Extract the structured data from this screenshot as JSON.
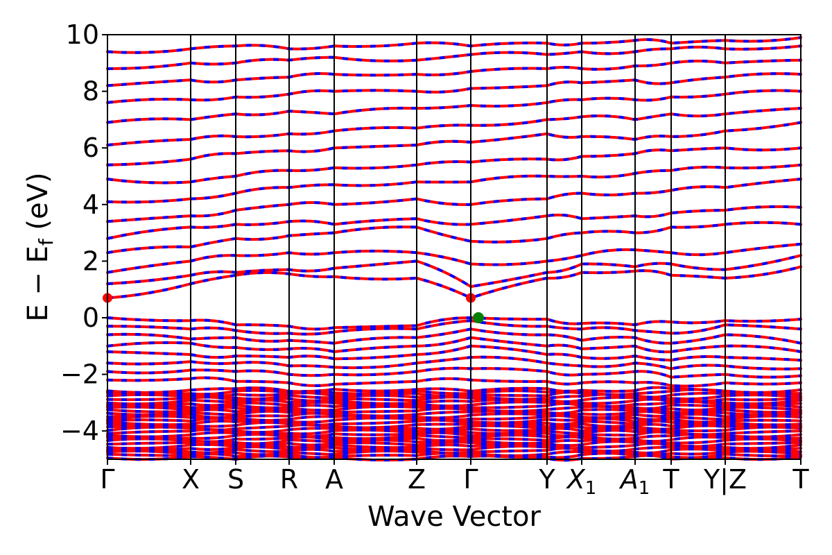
{
  "chart_data": {
    "type": "line",
    "title": "",
    "xlabel": "Wave Vector",
    "ylabel_main": "E − E",
    "ylabel_sub": "f",
    "ylabel_unit": " (eV)",
    "ylim": [
      -5,
      10
    ],
    "yticks": [
      10,
      8,
      6,
      4,
      2,
      0,
      -2,
      -4
    ],
    "ytick_labels": [
      "10",
      "8",
      "6",
      "4",
      "2",
      "0",
      "−2",
      "−4"
    ],
    "grid": false,
    "legend": "none",
    "colors": {
      "spin_up": "#ff0000",
      "spin_down": "#0000ff",
      "vbm": "#008000",
      "cbm": "#ff0000"
    },
    "kpath": [
      {
        "k": 0.0,
        "label": "Γ",
        "sub": ""
      },
      {
        "k": 0.12,
        "label": "X",
        "sub": ""
      },
      {
        "k": 0.185,
        "label": "S",
        "sub": ""
      },
      {
        "k": 0.262,
        "label": "R",
        "sub": ""
      },
      {
        "k": 0.327,
        "label": "A",
        "sub": ""
      },
      {
        "k": 0.446,
        "label": "Z",
        "sub": ""
      },
      {
        "k": 0.524,
        "label": "Γ",
        "sub": ""
      },
      {
        "k": 0.634,
        "label": "Y",
        "sub": ""
      },
      {
        "k": 0.684,
        "label": "X",
        "sub": "1"
      },
      {
        "k": 0.761,
        "label": "A",
        "sub": "1"
      },
      {
        "k": 0.813,
        "label": "T",
        "sub": ""
      },
      {
        "k": 0.891,
        "label": "Y|Z",
        "sub": ""
      },
      {
        "k": 1.0,
        "label": "T",
        "sub": ""
      }
    ],
    "valence_bands": [
      [
        0.0,
        -0.1,
        -0.25,
        -0.3,
        -0.35,
        -0.28,
        0.0,
        -0.05,
        -0.2,
        -0.25,
        -0.15,
        -0.1,
        -0.05
      ],
      [
        -0.3,
        -0.4,
        -0.45,
        -0.55,
        -0.5,
        -0.4,
        -0.1,
        -0.3,
        -0.4,
        -0.45,
        -0.55,
        -0.25,
        -0.4
      ],
      [
        -0.6,
        -0.75,
        -0.7,
        -0.8,
        -0.9,
        -0.7,
        -0.4,
        -0.6,
        -0.8,
        -0.7,
        -0.9,
        -0.6,
        -0.9
      ],
      [
        -1.0,
        -0.9,
        -1.05,
        -1.1,
        -1.2,
        -1.0,
        -0.7,
        -1.0,
        -1.1,
        -1.0,
        -1.2,
        -1.0,
        -1.2
      ],
      [
        -1.2,
        -1.3,
        -1.35,
        -1.4,
        -1.45,
        -1.3,
        -1.0,
        -1.3,
        -1.4,
        -1.35,
        -1.5,
        -1.4,
        -1.5
      ],
      [
        -1.6,
        -1.55,
        -1.6,
        -1.7,
        -1.75,
        -1.6,
        -1.4,
        -1.6,
        -1.7,
        -1.6,
        -1.8,
        -1.7,
        -1.8
      ],
      [
        -1.9,
        -1.85,
        -1.9,
        -2.0,
        -2.0,
        -1.9,
        -1.8,
        -1.9,
        -2.0,
        -1.9,
        -2.1,
        -2.0,
        -2.05
      ],
      [
        -2.2,
        -2.15,
        -2.25,
        -2.3,
        -2.35,
        -2.25,
        -2.2,
        -2.25,
        -2.3,
        -2.3,
        -2.4,
        -2.3,
        -2.3
      ]
    ],
    "conduction_bands": [
      [
        0.7,
        1.2,
        1.5,
        1.55,
        1.45,
        1.4,
        0.7,
        1.4,
        1.6,
        1.65,
        1.5,
        1.4,
        1.8
      ],
      [
        1.2,
        1.5,
        1.6,
        1.7,
        1.75,
        2.0,
        1.1,
        1.6,
        1.9,
        1.8,
        1.9,
        1.7,
        2.2
      ],
      [
        1.6,
        2.0,
        2.2,
        2.3,
        2.3,
        2.3,
        1.9,
        2.0,
        2.2,
        2.4,
        2.3,
        2.3,
        2.6
      ],
      [
        2.3,
        2.5,
        2.8,
        2.9,
        3.0,
        3.2,
        2.7,
        2.8,
        3.0,
        3.0,
        3.2,
        3.3,
        3.3
      ],
      [
        2.8,
        3.2,
        3.3,
        3.4,
        3.3,
        3.5,
        3.3,
        3.6,
        3.5,
        3.6,
        3.7,
        3.8,
        3.9
      ],
      [
        3.4,
        3.6,
        3.8,
        4.0,
        4.0,
        4.2,
        4.0,
        4.2,
        4.4,
        4.4,
        4.5,
        4.6,
        4.9
      ],
      [
        4.1,
        4.2,
        4.4,
        4.6,
        4.7,
        4.8,
        4.8,
        5.0,
        5.0,
        5.1,
        5.2,
        5.3,
        5.4
      ],
      [
        4.9,
        4.8,
        5.0,
        5.2,
        5.3,
        5.4,
        5.5,
        5.6,
        5.7,
        5.8,
        5.9,
        6.0,
        6.0
      ],
      [
        5.4,
        5.6,
        5.8,
        5.9,
        6.0,
        6.1,
        6.2,
        6.5,
        6.4,
        6.3,
        6.4,
        6.6,
        6.9
      ],
      [
        6.1,
        6.3,
        6.4,
        6.5,
        6.6,
        6.7,
        6.8,
        7.0,
        7.1,
        7.0,
        7.2,
        7.2,
        7.4
      ],
      [
        6.9,
        7.0,
        7.2,
        7.3,
        7.2,
        7.4,
        7.5,
        7.6,
        7.7,
        7.7,
        7.8,
        7.9,
        8.0
      ],
      [
        7.6,
        7.7,
        7.8,
        7.9,
        8.0,
        8.0,
        8.1,
        8.2,
        8.3,
        8.4,
        8.3,
        8.5,
        8.6
      ],
      [
        8.2,
        8.4,
        8.4,
        8.5,
        8.6,
        8.6,
        8.7,
        8.8,
        8.8,
        8.9,
        9.0,
        9.0,
        9.1
      ],
      [
        8.8,
        9.0,
        9.0,
        9.1,
        9.2,
        9.1,
        9.3,
        9.3,
        9.4,
        9.4,
        9.5,
        9.5,
        9.6
      ],
      [
        9.4,
        9.5,
        9.6,
        9.5,
        9.6,
        9.7,
        9.6,
        9.7,
        9.7,
        9.8,
        9.7,
        9.8,
        9.9
      ]
    ],
    "dense_region": {
      "ymin": -5,
      "ymax": -2.5,
      "bands": 30
    },
    "vbm": {
      "k": 0.535,
      "e": 0.0
    },
    "cbm_points": [
      {
        "k": 0.0,
        "e": 0.7
      },
      {
        "k": 0.524,
        "e": 0.7
      }
    ]
  }
}
